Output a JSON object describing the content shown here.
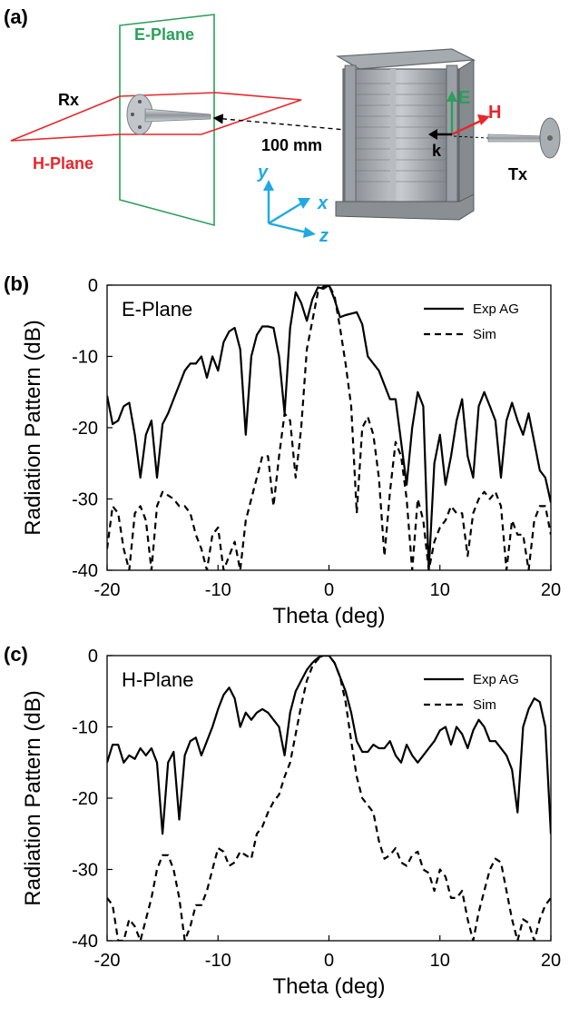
{
  "panel_a": {
    "label": "(a)",
    "e_plane_label": "E-Plane",
    "h_plane_label": "H-Plane",
    "rx_label": "Rx",
    "tx_label": "Tx",
    "distance_label": "100 mm",
    "axis_x": "x",
    "axis_y": "y",
    "axis_z": "z",
    "vec_e": "E",
    "vec_h": "H",
    "vec_k": "k",
    "colors": {
      "e_plane": "#2aa05a",
      "h_plane": "#e8262b",
      "axes": "#1fa9e1"
    }
  },
  "chart_data": [
    {
      "panel_label": "(b)",
      "type": "line",
      "inset_title": "E-Plane",
      "xlabel": "Theta (deg)",
      "ylabel": "Radiation Pattern (dB)",
      "xlim": [
        -20,
        20
      ],
      "ylim": [
        -40,
        0
      ],
      "x_ticks": [
        "-20",
        "-10",
        "0",
        "10",
        "20"
      ],
      "y_ticks": [
        "0",
        "-10",
        "-20",
        "-30",
        "-40"
      ],
      "grid": false,
      "legend_position": "top-right",
      "series": [
        {
          "name": "Exp AG",
          "style": "solid",
          "x": [
            -20,
            -19.5,
            -19,
            -18.5,
            -18,
            -17.5,
            -17,
            -16.5,
            -16,
            -15.5,
            -15,
            -14.5,
            -14,
            -13.5,
            -13,
            -12.5,
            -12,
            -11.5,
            -11,
            -10.5,
            -10,
            -9.5,
            -9,
            -8.5,
            -8,
            -7.5,
            -7,
            -6.5,
            -6,
            -5.5,
            -5,
            -4.5,
            -4,
            -3.5,
            -3,
            -2.5,
            -2,
            -1.5,
            -1,
            -0.5,
            0,
            0.5,
            1,
            1.5,
            2,
            2.5,
            3,
            3.5,
            4,
            4.5,
            5,
            5.5,
            6,
            6.5,
            7,
            7.5,
            8,
            8.5,
            9,
            9.5,
            10,
            10.5,
            11,
            11.5,
            12,
            12.5,
            13,
            13.5,
            14,
            14.5,
            15,
            15.5,
            16,
            16.5,
            17,
            17.5,
            18,
            18.5,
            19,
            19.5,
            20
          ],
          "y": [
            -15.5,
            -19.5,
            -19,
            -17,
            -16.5,
            -21,
            -27,
            -21,
            -19,
            -27,
            -19.5,
            -18,
            -16,
            -14,
            -12,
            -11,
            -11,
            -10,
            -13,
            -10,
            -12,
            -8,
            -6.5,
            -6,
            -9,
            -21,
            -10,
            -7,
            -5.8,
            -5.8,
            -6,
            -10,
            -18,
            -6,
            -1,
            -2.5,
            -5,
            -2,
            -0.3,
            -0.5,
            0,
            -2,
            -4.5,
            -4.2,
            -4,
            -3.8,
            -5.5,
            -10,
            -11,
            -12,
            -14,
            -16,
            -16,
            -22,
            -28,
            -20,
            -15,
            -17,
            -40,
            -25,
            -21,
            -28,
            -24,
            -19,
            -16,
            -24,
            -27,
            -17,
            -15,
            -17,
            -19,
            -27,
            -19,
            -16.5,
            -19,
            -21,
            -18,
            -22,
            -26,
            -27,
            -30.5
          ]
        },
        {
          "name": "Sim",
          "style": "dashed",
          "x": [
            -20,
            -19.5,
            -19,
            -18.5,
            -18,
            -17.5,
            -17,
            -16.5,
            -16,
            -15.5,
            -15,
            -14.5,
            -14,
            -13.5,
            -13,
            -12.5,
            -12,
            -11.5,
            -11,
            -10.5,
            -10,
            -9.5,
            -9,
            -8.5,
            -8,
            -7.5,
            -7,
            -6.5,
            -6,
            -5.5,
            -5,
            -4.5,
            -4,
            -3.5,
            -3,
            -2.5,
            -2,
            -1.5,
            -1,
            -0.5,
            0,
            0.5,
            1,
            1.5,
            2,
            2.5,
            3,
            3.5,
            4,
            4.5,
            5,
            5.5,
            6,
            6.5,
            7,
            7.5,
            8,
            8.5,
            9,
            9.5,
            10,
            10.5,
            11,
            11.5,
            12,
            12.5,
            13,
            13.5,
            14,
            14.5,
            15,
            15.5,
            16,
            16.5,
            17,
            17.5,
            18,
            18.5,
            19,
            19.5,
            20
          ],
          "y": [
            -37,
            -31,
            -32,
            -37,
            -40,
            -32,
            -31,
            -33,
            -40,
            -31,
            -29,
            -29.5,
            -30,
            -31,
            -31,
            -32,
            -35,
            -37,
            -40,
            -35,
            -34,
            -40,
            -38,
            -36,
            -40,
            -33,
            -30,
            -27,
            -24,
            -24,
            -31,
            -24,
            -18,
            -19,
            -27,
            -20,
            -9,
            -5,
            -1,
            -0.2,
            0,
            -1.5,
            -6,
            -11,
            -17,
            -32,
            -20,
            -18.5,
            -21,
            -27,
            -38,
            -29,
            -22,
            -24,
            -30,
            -40,
            -30,
            -33,
            -40,
            -36,
            -34,
            -33,
            -31,
            -32,
            -32,
            -38,
            -32,
            -30,
            -29,
            -30,
            -29,
            -31,
            -40,
            -33,
            -35,
            -35,
            -40,
            -33,
            -31,
            -31,
            -35
          ]
        }
      ]
    },
    {
      "panel_label": "(c)",
      "type": "line",
      "inset_title": "H-Plane",
      "xlabel": "Theta (deg)",
      "ylabel": "Radiation Pattern (dB)",
      "xlim": [
        -20,
        20
      ],
      "ylim": [
        -40,
        0
      ],
      "x_ticks": [
        "-20",
        "-10",
        "0",
        "10",
        "20"
      ],
      "y_ticks": [
        "0",
        "-10",
        "-20",
        "-30",
        "-40"
      ],
      "grid": false,
      "legend_position": "top-right",
      "series": [
        {
          "name": "Exp AG",
          "style": "solid",
          "x": [
            -20,
            -19.5,
            -19,
            -18.5,
            -18,
            -17.5,
            -17,
            -16.5,
            -16,
            -15.5,
            -15,
            -14.5,
            -14,
            -13.5,
            -13,
            -12.5,
            -12,
            -11.5,
            -11,
            -10.5,
            -10,
            -9.5,
            -9,
            -8.5,
            -8,
            -7.5,
            -7,
            -6.5,
            -6,
            -5.5,
            -5,
            -4.5,
            -4,
            -3.5,
            -3,
            -2.5,
            -2,
            -1.5,
            -1,
            -0.5,
            0,
            0.5,
            1,
            1.5,
            2,
            2.5,
            3,
            3.5,
            4,
            4.5,
            5,
            5.5,
            6,
            6.5,
            7,
            7.5,
            8,
            8.5,
            9,
            9.5,
            10,
            10.5,
            11,
            11.5,
            12,
            12.5,
            13,
            13.5,
            14,
            14.5,
            15,
            15.5,
            16,
            16.5,
            17,
            17.5,
            18,
            18.5,
            19,
            19.5,
            20
          ],
          "y": [
            -15,
            -12.5,
            -12.5,
            -15,
            -14,
            -14.5,
            -13,
            -14,
            -13,
            -15,
            -25,
            -15,
            -13.5,
            -23,
            -14,
            -12,
            -11.5,
            -14,
            -12,
            -10,
            -7.5,
            -5.5,
            -4.5,
            -6,
            -10,
            -8,
            -9,
            -8,
            -7.5,
            -8,
            -9,
            -10,
            -14,
            -8,
            -5,
            -3.5,
            -2,
            -1,
            -0.3,
            0,
            0,
            -1,
            -3,
            -5,
            -8,
            -12,
            -13.5,
            -13.5,
            -12.5,
            -13,
            -13,
            -12,
            -14,
            -15,
            -12.5,
            -14,
            -15,
            -14,
            -13,
            -12,
            -10.5,
            -10,
            -12.5,
            -10,
            -11,
            -13,
            -10.5,
            -9,
            -10,
            -12,
            -12,
            -13,
            -14,
            -16,
            -22,
            -10,
            -7.5,
            -6,
            -6.5,
            -10,
            -25
          ]
        },
        {
          "name": "Sim",
          "style": "dashed",
          "x": [
            -20,
            -19.5,
            -19,
            -18.5,
            -18,
            -17.5,
            -17,
            -16.5,
            -16,
            -15.5,
            -15,
            -14.5,
            -14,
            -13.5,
            -13,
            -12.5,
            -12,
            -11.5,
            -11,
            -10.5,
            -10,
            -9.5,
            -9,
            -8.5,
            -8,
            -7.5,
            -7,
            -6.5,
            -6,
            -5.5,
            -5,
            -4.5,
            -4,
            -3.5,
            -3,
            -2.5,
            -2,
            -1.5,
            -1,
            -0.5,
            0,
            0.5,
            1,
            1.5,
            2,
            2.5,
            3,
            3.5,
            4,
            4.5,
            5,
            5.5,
            6,
            6.5,
            7,
            7.5,
            8,
            8.5,
            9,
            9.5,
            10,
            10.5,
            11,
            11.5,
            12,
            12.5,
            13,
            13.5,
            14,
            14.5,
            15,
            15.5,
            16,
            16.5,
            17,
            17.5,
            18,
            18.5,
            19,
            19.5,
            20
          ],
          "y": [
            -34,
            -35,
            -40,
            -40,
            -37,
            -38,
            -40,
            -37,
            -34,
            -30,
            -28,
            -28,
            -30,
            -34,
            -40,
            -38,
            -35,
            -35,
            -33,
            -30,
            -27,
            -27.5,
            -29.5,
            -29,
            -27.5,
            -28,
            -28.5,
            -25,
            -24,
            -22,
            -20.5,
            -19.5,
            -17,
            -15,
            -11,
            -7,
            -3.5,
            -1.5,
            -0.5,
            0,
            0,
            -1,
            -3,
            -6.5,
            -12,
            -17,
            -20,
            -21,
            -22,
            -26,
            -28.5,
            -28,
            -27,
            -29,
            -29.5,
            -28,
            -27.5,
            -30,
            -30.5,
            -33,
            -30,
            -31,
            -34,
            -34,
            -33,
            -37,
            -40,
            -36,
            -33,
            -30,
            -28.5,
            -29,
            -33,
            -37,
            -40,
            -37,
            -37.5,
            -40,
            -37,
            -35,
            -34
          ]
        }
      ]
    }
  ]
}
